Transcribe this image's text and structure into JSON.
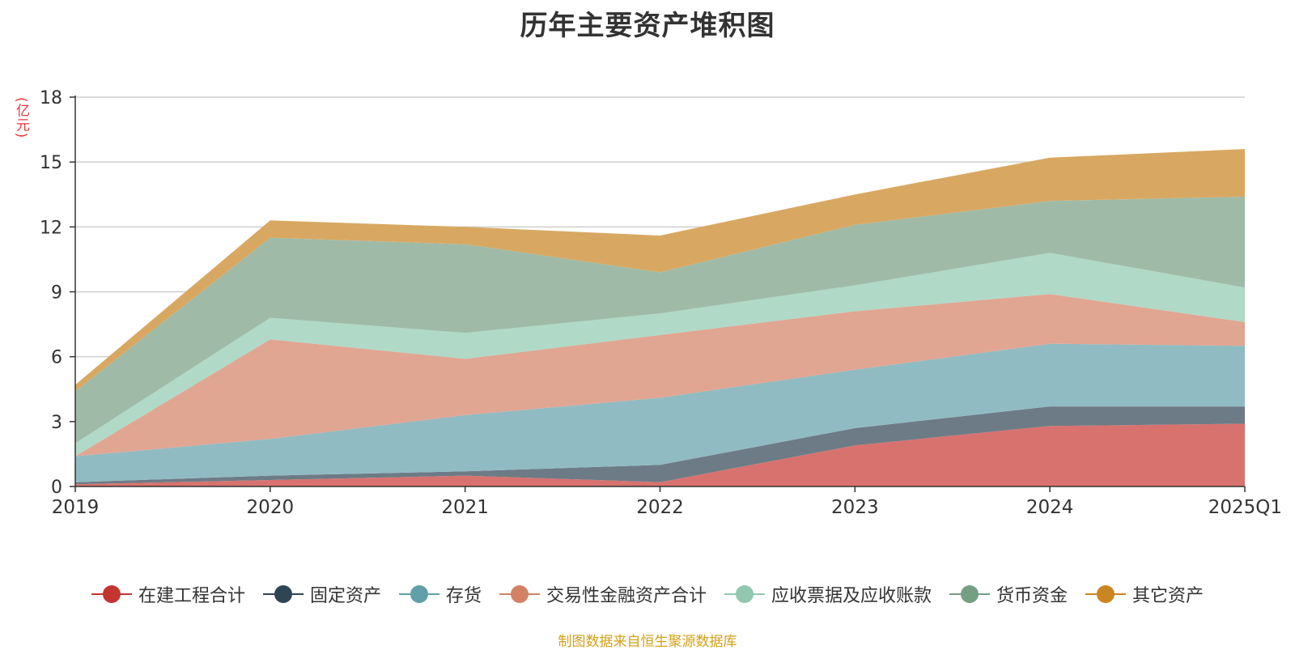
{
  "chart_data": {
    "type": "area",
    "stacked": true,
    "title": "历年主要资产堆积图",
    "unit_label": "(亿元)",
    "source": "制图数据来自恒生聚源数据库",
    "categories": [
      "2019",
      "2020",
      "2021",
      "2022",
      "2023",
      "2024",
      "2025Q1"
    ],
    "ylim": [
      0,
      18
    ],
    "yticks": [
      0,
      3,
      6,
      9,
      12,
      15,
      18
    ],
    "grid": true,
    "legend_position": "bottom",
    "series": [
      {
        "name": "在建工程合计",
        "color": "#c23531",
        "fill": "#d8726e",
        "values": [
          0.1,
          0.3,
          0.5,
          0.2,
          1.9,
          2.8,
          2.9
        ]
      },
      {
        "name": "固定资产",
        "color": "#2f4554",
        "fill": "#6d7b86",
        "values": [
          0.1,
          0.2,
          0.2,
          0.8,
          0.8,
          0.9,
          0.8
        ]
      },
      {
        "name": "存货",
        "color": "#61a0a8",
        "fill": "#91bbc2",
        "values": [
          1.2,
          1.7,
          2.6,
          3.1,
          2.7,
          2.9,
          2.8
        ]
      },
      {
        "name": "交易性金融资产合计",
        "color": "#d48265",
        "fill": "#e0a692",
        "values": [
          0.0,
          4.6,
          2.6,
          2.9,
          2.7,
          2.3,
          1.1
        ]
      },
      {
        "name": "应收票据及应收账款",
        "color": "#91c7ae",
        "fill": "#b0d9c7",
        "values": [
          0.6,
          1.0,
          1.2,
          1.0,
          1.2,
          1.9,
          1.6
        ]
      },
      {
        "name": "货币资金",
        "color": "#749f83",
        "fill": "#9fbba8",
        "values": [
          2.4,
          3.7,
          4.1,
          1.9,
          2.8,
          2.4,
          4.2
        ]
      },
      {
        "name": "其它资产",
        "color": "#ca8622",
        "fill": "#d8a862",
        "values": [
          0.3,
          0.8,
          0.8,
          1.7,
          1.4,
          2.0,
          2.2
        ]
      }
    ]
  }
}
